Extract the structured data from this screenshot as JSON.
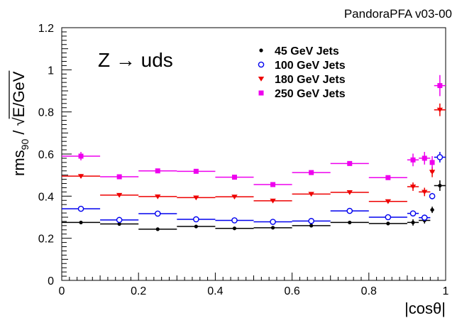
{
  "chart_data": {
    "type": "scatter",
    "title": "PandoraPFA v03-00",
    "process_label": "Z → uds",
    "xlabel": "|cosθ|",
    "ylabel_main": "rms",
    "ylabel_sub": "90",
    "ylabel_sep": " / ",
    "ylabel_sqrt": "√",
    "ylabel_rad": "E/GeV",
    "xlim": [
      0,
      1
    ],
    "ylim": [
      0,
      1.2
    ],
    "xticks": [
      0,
      0.2,
      0.4,
      0.6,
      0.8,
      1
    ],
    "xtick_labels": [
      "0",
      "0.2",
      "0.4",
      "0.6",
      "0.8",
      "1"
    ],
    "yticks": [
      0,
      0.2,
      0.4,
      0.6,
      0.8,
      1,
      1.2
    ],
    "ytick_labels": [
      "0",
      "0.2",
      "0.4",
      "0.6",
      "0.8",
      "1",
      "1.2"
    ],
    "legend_position": "top-right",
    "series": [
      {
        "name": "45 GeV Jets",
        "marker": "circle-filled",
        "color": "#000000",
        "points": [
          {
            "x": 0.05,
            "xerr": 0.05,
            "y": 0.275,
            "yerr": 0.003
          },
          {
            "x": 0.15,
            "xerr": 0.05,
            "y": 0.268,
            "yerr": 0.003
          },
          {
            "x": 0.25,
            "xerr": 0.05,
            "y": 0.243,
            "yerr": 0.003
          },
          {
            "x": 0.35,
            "xerr": 0.05,
            "y": 0.256,
            "yerr": 0.003
          },
          {
            "x": 0.45,
            "xerr": 0.05,
            "y": 0.247,
            "yerr": 0.003
          },
          {
            "x": 0.55,
            "xerr": 0.05,
            "y": 0.25,
            "yerr": 0.003
          },
          {
            "x": 0.65,
            "xerr": 0.05,
            "y": 0.26,
            "yerr": 0.003
          },
          {
            "x": 0.75,
            "xerr": 0.05,
            "y": 0.275,
            "yerr": 0.003
          },
          {
            "x": 0.85,
            "xerr": 0.05,
            "y": 0.27,
            "yerr": 0.003
          },
          {
            "x": 0.915,
            "xerr": 0.015,
            "y": 0.275,
            "yerr": 0.015
          },
          {
            "x": 0.945,
            "xerr": 0.015,
            "y": 0.285,
            "yerr": 0.015
          },
          {
            "x": 0.965,
            "xerr": 0.005,
            "y": 0.335,
            "yerr": 0.015
          },
          {
            "x": 0.985,
            "xerr": 0.015,
            "y": 0.45,
            "yerr": 0.025
          }
        ]
      },
      {
        "name": "100 GeV Jets",
        "marker": "circle-open",
        "color": "#0000ee",
        "points": [
          {
            "x": 0.05,
            "xerr": 0.05,
            "y": 0.34,
            "yerr": 0.003
          },
          {
            "x": 0.15,
            "xerr": 0.05,
            "y": 0.287,
            "yerr": 0.003
          },
          {
            "x": 0.25,
            "xerr": 0.05,
            "y": 0.317,
            "yerr": 0.003
          },
          {
            "x": 0.35,
            "xerr": 0.05,
            "y": 0.29,
            "yerr": 0.003
          },
          {
            "x": 0.45,
            "xerr": 0.05,
            "y": 0.285,
            "yerr": 0.003
          },
          {
            "x": 0.55,
            "xerr": 0.05,
            "y": 0.278,
            "yerr": 0.003
          },
          {
            "x": 0.65,
            "xerr": 0.05,
            "y": 0.282,
            "yerr": 0.003
          },
          {
            "x": 0.75,
            "xerr": 0.05,
            "y": 0.33,
            "yerr": 0.003
          },
          {
            "x": 0.85,
            "xerr": 0.05,
            "y": 0.3,
            "yerr": 0.003
          },
          {
            "x": 0.915,
            "xerr": 0.015,
            "y": 0.318,
            "yerr": 0.01
          },
          {
            "x": 0.945,
            "xerr": 0.015,
            "y": 0.298,
            "yerr": 0.01
          },
          {
            "x": 0.965,
            "xerr": 0.005,
            "y": 0.4,
            "yerr": 0.015
          },
          {
            "x": 0.985,
            "xerr": 0.015,
            "y": 0.585,
            "yerr": 0.025
          }
        ]
      },
      {
        "name": "180 GeV Jets",
        "marker": "triangle-down",
        "color": "#ee0000",
        "points": [
          {
            "x": 0.05,
            "xerr": 0.05,
            "y": 0.495,
            "yerr": 0.01
          },
          {
            "x": 0.15,
            "xerr": 0.05,
            "y": 0.405,
            "yerr": 0.005
          },
          {
            "x": 0.25,
            "xerr": 0.05,
            "y": 0.398,
            "yerr": 0.005
          },
          {
            "x": 0.35,
            "xerr": 0.05,
            "y": 0.393,
            "yerr": 0.005
          },
          {
            "x": 0.45,
            "xerr": 0.05,
            "y": 0.397,
            "yerr": 0.005
          },
          {
            "x": 0.55,
            "xerr": 0.05,
            "y": 0.378,
            "yerr": 0.005
          },
          {
            "x": 0.65,
            "xerr": 0.05,
            "y": 0.41,
            "yerr": 0.005
          },
          {
            "x": 0.75,
            "xerr": 0.05,
            "y": 0.418,
            "yerr": 0.005
          },
          {
            "x": 0.85,
            "xerr": 0.05,
            "y": 0.375,
            "yerr": 0.005
          },
          {
            "x": 0.915,
            "xerr": 0.015,
            "y": 0.445,
            "yerr": 0.02
          },
          {
            "x": 0.945,
            "xerr": 0.015,
            "y": 0.42,
            "yerr": 0.02
          },
          {
            "x": 0.965,
            "xerr": 0.005,
            "y": 0.515,
            "yerr": 0.025
          },
          {
            "x": 0.985,
            "xerr": 0.015,
            "y": 0.81,
            "yerr": 0.03
          }
        ]
      },
      {
        "name": "250 GeV Jets",
        "marker": "square",
        "color": "#ee00ee",
        "points": [
          {
            "x": 0.05,
            "xerr": 0.05,
            "y": 0.59,
            "yerr": 0.02
          },
          {
            "x": 0.15,
            "xerr": 0.05,
            "y": 0.492,
            "yerr": 0.01
          },
          {
            "x": 0.25,
            "xerr": 0.05,
            "y": 0.52,
            "yerr": 0.01
          },
          {
            "x": 0.35,
            "xerr": 0.05,
            "y": 0.518,
            "yerr": 0.01
          },
          {
            "x": 0.45,
            "xerr": 0.05,
            "y": 0.49,
            "yerr": 0.01
          },
          {
            "x": 0.55,
            "xerr": 0.05,
            "y": 0.455,
            "yerr": 0.01
          },
          {
            "x": 0.65,
            "xerr": 0.05,
            "y": 0.512,
            "yerr": 0.01
          },
          {
            "x": 0.75,
            "xerr": 0.05,
            "y": 0.555,
            "yerr": 0.01
          },
          {
            "x": 0.85,
            "xerr": 0.05,
            "y": 0.488,
            "yerr": 0.005
          },
          {
            "x": 0.915,
            "xerr": 0.015,
            "y": 0.572,
            "yerr": 0.03
          },
          {
            "x": 0.945,
            "xerr": 0.015,
            "y": 0.58,
            "yerr": 0.03
          },
          {
            "x": 0.965,
            "xerr": 0.005,
            "y": 0.56,
            "yerr": 0.03
          },
          {
            "x": 0.985,
            "xerr": 0.015,
            "y": 0.925,
            "yerr": 0.05
          }
        ]
      }
    ]
  }
}
